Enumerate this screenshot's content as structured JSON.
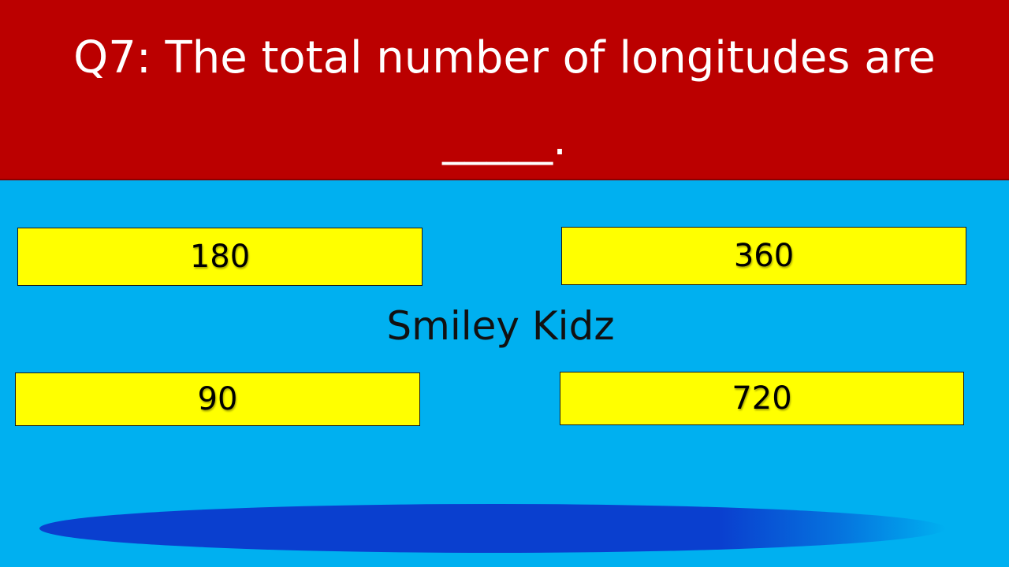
{
  "question": {
    "line1": "Q7: The total number of longitudes are",
    "line2": "_____."
  },
  "options": [
    {
      "id": "a",
      "label": "180"
    },
    {
      "id": "b",
      "label": "360"
    },
    {
      "id": "c",
      "label": "90"
    },
    {
      "id": "d",
      "label": "720"
    }
  ],
  "watermark": "Smiley Kidz",
  "colors": {
    "header_bg": "#bb0000",
    "body_bg": "#00b0f0",
    "option_bg": "#ffff00",
    "ellipse": "#0a3fcf"
  }
}
